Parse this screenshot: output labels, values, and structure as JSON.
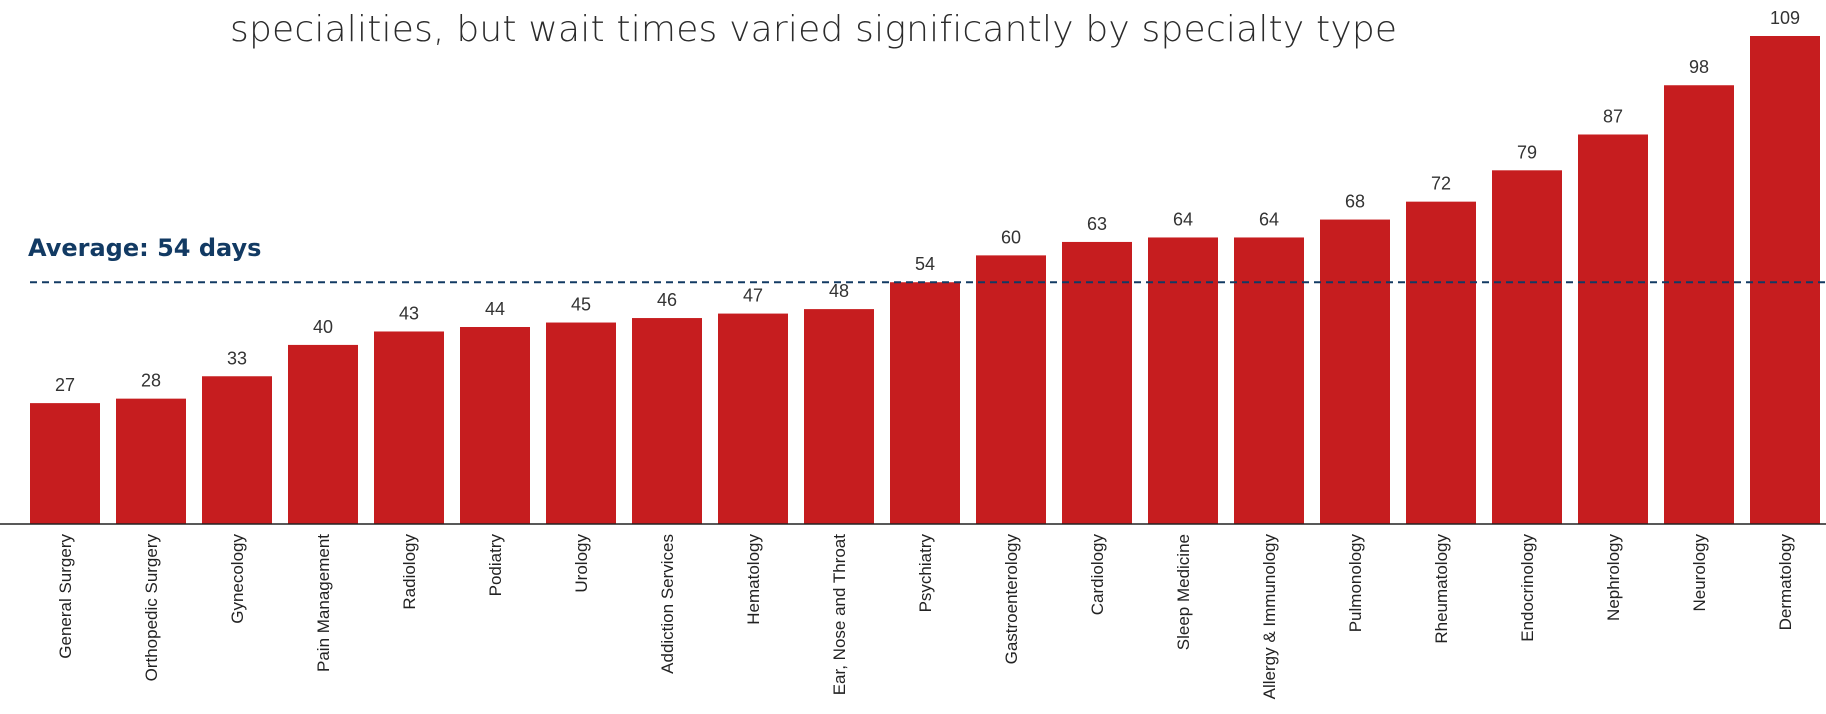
{
  "subtitle": "specialities, but wait times varied significantly by specialty type",
  "average_label": "Average: 54 days",
  "colors": {
    "bar": "#c61d1f",
    "average_line": "#123a63",
    "axis": "#222222",
    "text": "#333333"
  },
  "chart_data": {
    "type": "bar",
    "title": "",
    "xlabel": "",
    "ylabel": "",
    "ylim": [
      0,
      109
    ],
    "grid": false,
    "legend": "none",
    "average": 54,
    "categories": [
      "General Surgery",
      "Orthopedic Surgery",
      "Gynecology",
      "Pain Management",
      "Radiology",
      "Podiatry",
      "Urology",
      "Addiction Services",
      "Hematology",
      "Ear, Nose and Throat",
      "Psychiatry",
      "Gastroenterology",
      "Cardiology",
      "Sleep Medicine",
      "Allergy & Immunology",
      "Pulmonology",
      "Rheumatology",
      "Endocrinology",
      "Nephrology",
      "Neurology",
      "Dermatology"
    ],
    "values": [
      27,
      28,
      33,
      40,
      43,
      44,
      45,
      46,
      47,
      48,
      54,
      60,
      63,
      64,
      64,
      68,
      72,
      79,
      87,
      98,
      109
    ]
  }
}
